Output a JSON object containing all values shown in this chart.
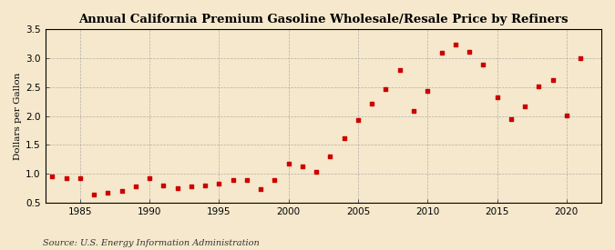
{
  "title": "Annual California Premium Gasoline Wholesale/Resale Price by Refiners",
  "ylabel": "Dollars per Gallon",
  "source": "Source: U.S. Energy Information Administration",
  "background_color": "#f5e8cc",
  "marker_color": "#cc0000",
  "xlim": [
    1982.5,
    2022.5
  ],
  "ylim": [
    0.5,
    3.5
  ],
  "xticks": [
    1985,
    1990,
    1995,
    2000,
    2005,
    2010,
    2015,
    2020
  ],
  "yticks": [
    0.5,
    1.0,
    1.5,
    2.0,
    2.5,
    3.0,
    3.5
  ],
  "ytick_labels": [
    "0.5",
    "1.0",
    "1.5",
    "2.0",
    "2.5",
    "3.0",
    "3.5"
  ],
  "years": [
    1983,
    1984,
    1985,
    1986,
    1987,
    1988,
    1989,
    1990,
    1991,
    1992,
    1993,
    1994,
    1995,
    1996,
    1997,
    1998,
    1999,
    2000,
    2001,
    2002,
    2003,
    2004,
    2005,
    2006,
    2007,
    2008,
    2009,
    2010,
    2011,
    2012,
    2013,
    2014,
    2015,
    2016,
    2017,
    2018,
    2019,
    2020,
    2021
  ],
  "values": [
    0.95,
    0.93,
    0.92,
    0.65,
    0.68,
    0.7,
    0.79,
    0.93,
    0.8,
    0.76,
    0.79,
    0.8,
    0.83,
    0.9,
    0.9,
    0.73,
    0.9,
    1.17,
    1.13,
    1.03,
    1.3,
    1.62,
    1.93,
    2.22,
    2.47,
    2.8,
    2.08,
    2.43,
    3.09,
    3.24,
    3.1,
    2.88,
    2.32,
    1.95,
    2.17,
    2.51,
    2.62,
    2.01,
    3.0
  ],
  "title_fontsize": 9.5,
  "tick_fontsize": 7.5,
  "ylabel_fontsize": 7.5,
  "source_fontsize": 7
}
